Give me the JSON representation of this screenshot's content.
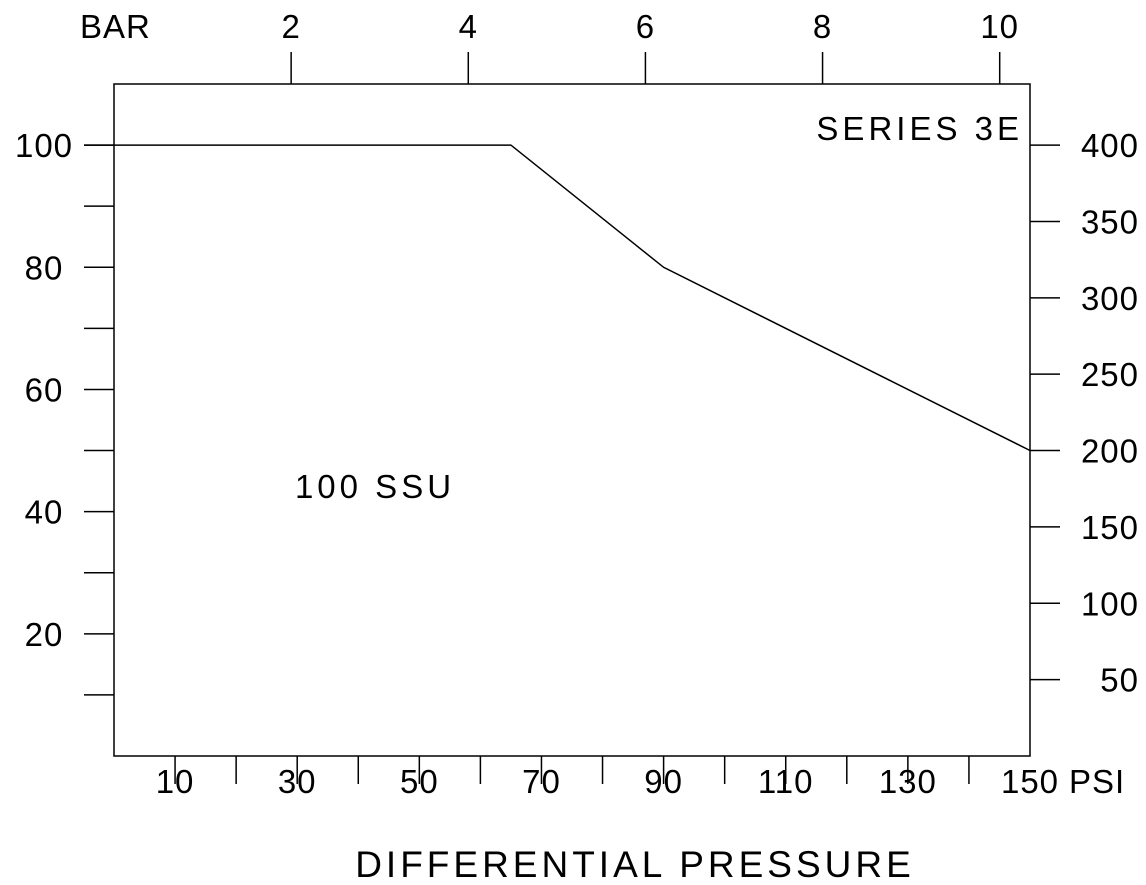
{
  "chart_data": {
    "type": "line",
    "title": "",
    "xlabel": "DIFFERENTIAL PRESSURE",
    "x_unit_label": "PSI",
    "x2_unit_label": "BAR",
    "xlim": [
      0,
      150
    ],
    "ylim": [
      0,
      110
    ],
    "y2lim": [
      0,
      440
    ],
    "x_ticks": [
      0,
      10,
      20,
      30,
      40,
      50,
      60,
      70,
      80,
      90,
      100,
      110,
      120,
      130,
      140,
      150
    ],
    "x_tick_labels": [
      {
        "value": 10,
        "label": "10"
      },
      {
        "value": 30,
        "label": "30"
      },
      {
        "value": 50,
        "label": "50"
      },
      {
        "value": 70,
        "label": "70"
      },
      {
        "value": 90,
        "label": "90"
      },
      {
        "value": 110,
        "label": "110"
      },
      {
        "value": 130,
        "label": "130"
      },
      {
        "value": 150,
        "label": "150"
      }
    ],
    "x2_ticks": [
      {
        "value": 2,
        "label": "2"
      },
      {
        "value": 4,
        "label": "4"
      },
      {
        "value": 6,
        "label": "6"
      },
      {
        "value": 8,
        "label": "8"
      },
      {
        "value": 10,
        "label": "10"
      }
    ],
    "y_ticks": [
      10,
      20,
      30,
      40,
      50,
      60,
      70,
      80,
      90,
      100
    ],
    "y_tick_labels": [
      {
        "value": 20,
        "label": "20"
      },
      {
        "value": 40,
        "label": "40"
      },
      {
        "value": 60,
        "label": "60"
      },
      {
        "value": 80,
        "label": "80"
      },
      {
        "value": 100,
        "label": "100"
      }
    ],
    "y2_ticks": [
      {
        "value": 50,
        "label": "50"
      },
      {
        "value": 100,
        "label": "100"
      },
      {
        "value": 150,
        "label": "150"
      },
      {
        "value": 200,
        "label": "200"
      },
      {
        "value": 250,
        "label": "250"
      },
      {
        "value": 300,
        "label": "300"
      },
      {
        "value": 350,
        "label": "350"
      },
      {
        "value": 400,
        "label": "400"
      }
    ],
    "series": [
      {
        "name": "100 SSU",
        "points": [
          [
            0,
            100
          ],
          [
            65,
            100
          ],
          [
            90,
            80
          ],
          [
            150,
            50
          ]
        ]
      }
    ],
    "annotations": [
      "SERIES 3E",
      "100 SSU"
    ],
    "grid": false,
    "legend": "none"
  }
}
